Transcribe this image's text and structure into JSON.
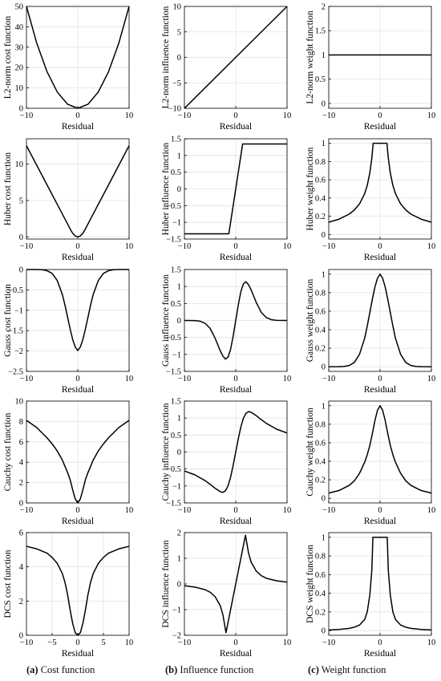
{
  "chart_data": [
    {
      "id": "l2-cost",
      "type": "line",
      "xlabel": "Residual",
      "ylabel": "L2-norm cost function",
      "xlim": [
        -10,
        10
      ],
      "ylim": [
        0,
        50
      ],
      "xticks": [
        -10,
        0,
        10
      ],
      "yticks": [
        0,
        10,
        20,
        30,
        40,
        50
      ],
      "grid": true,
      "series": [
        {
          "color": "#000000",
          "x": [
            -10,
            -8,
            -6,
            -4,
            -2,
            0,
            2,
            4,
            6,
            8,
            10
          ],
          "y": [
            50,
            32,
            18,
            8,
            2,
            0,
            2,
            8,
            18,
            32,
            50
          ]
        }
      ]
    },
    {
      "id": "l2-influence",
      "type": "line",
      "xlabel": "Residual",
      "ylabel": "L2-norm influence function",
      "xlim": [
        -10,
        10
      ],
      "ylim": [
        -10,
        10
      ],
      "xticks": [
        -10,
        0,
        10
      ],
      "yticks": [
        -10,
        -5,
        0,
        5,
        10
      ],
      "grid": true,
      "series": [
        {
          "color": "#000000",
          "x": [
            -10,
            0,
            10
          ],
          "y": [
            -10,
            0,
            10
          ]
        }
      ]
    },
    {
      "id": "l2-weight",
      "type": "line",
      "xlabel": "Residual",
      "ylabel": "L2-norm weight function",
      "xlim": [
        -10,
        10
      ],
      "ylim": [
        -0.1,
        2
      ],
      "xticks": [
        -10,
        0,
        10
      ],
      "yticks": [
        0,
        0.5,
        1,
        1.5,
        2
      ],
      "grid": true,
      "series": [
        {
          "color": "#000000",
          "x": [
            -10,
            10
          ],
          "y": [
            1,
            1
          ]
        }
      ]
    },
    {
      "id": "huber-cost",
      "type": "line",
      "xlabel": "Residual",
      "ylabel": "Huber cost function",
      "xlim": [
        -10,
        10
      ],
      "ylim": [
        -0.3,
        13.5
      ],
      "xticks": [
        -10,
        0,
        10
      ],
      "yticks": [
        0,
        5,
        10
      ],
      "grid": true,
      "series": [
        {
          "color": "#000000",
          "x": [
            -10,
            -8,
            -6,
            -4,
            -2,
            -1.345,
            -1,
            -0.5,
            0,
            0.5,
            1,
            1.345,
            2,
            4,
            6,
            8,
            10
          ],
          "y": [
            12.55,
            9.86,
            7.17,
            4.48,
            1.79,
            0.9,
            0.5,
            0.125,
            0,
            0.125,
            0.5,
            0.9,
            1.79,
            4.48,
            7.17,
            9.86,
            12.55
          ]
        }
      ]
    },
    {
      "id": "huber-influence",
      "type": "line",
      "xlabel": "Residual",
      "ylabel": "Huber influence function",
      "xlim": [
        -10,
        10
      ],
      "ylim": [
        -1.5,
        1.5
      ],
      "xticks": [
        -10,
        0,
        10
      ],
      "yticks": [
        -1.5,
        -1,
        -0.5,
        0,
        0.5,
        1,
        1.5
      ],
      "grid": true,
      "series": [
        {
          "color": "#000000",
          "x": [
            -10,
            -1.345,
            1.345,
            10
          ],
          "y": [
            -1.345,
            -1.345,
            1.345,
            1.345
          ]
        }
      ]
    },
    {
      "id": "huber-weight",
      "type": "line",
      "xlabel": "Residual",
      "ylabel": "Huber weight function",
      "xlim": [
        -10,
        10
      ],
      "ylim": [
        -0.05,
        1.05
      ],
      "xticks": [
        -10,
        0,
        10
      ],
      "yticks": [
        0,
        0.2,
        0.4,
        0.6,
        0.8,
        1
      ],
      "grid": true,
      "series": [
        {
          "color": "#000000",
          "x": [
            -10,
            -8,
            -6,
            -5,
            -4,
            -3,
            -2.5,
            -2,
            -1.6,
            -1.345,
            1.345,
            1.6,
            2,
            2.5,
            3,
            4,
            5,
            6,
            8,
            10
          ],
          "y": [
            0.135,
            0.168,
            0.224,
            0.269,
            0.336,
            0.448,
            0.538,
            0.673,
            0.841,
            1,
            1,
            0.841,
            0.673,
            0.538,
            0.448,
            0.336,
            0.269,
            0.224,
            0.168,
            0.135
          ]
        }
      ]
    },
    {
      "id": "gauss-cost",
      "type": "line",
      "xlabel": "Residual",
      "ylabel": "Gauss cost function",
      "xlim": [
        -10,
        10
      ],
      "ylim": [
        -2.5,
        0
      ],
      "xticks": [
        -10,
        0,
        10
      ],
      "yticks": [
        -2.5,
        -2,
        -1.5,
        -1,
        -0.5,
        0
      ],
      "grid": true,
      "series": [
        {
          "color": "#000000",
          "x": [
            -10,
            -8,
            -7,
            -6,
            -5,
            -4,
            -3,
            -2.5,
            -2,
            -1.5,
            -1,
            -0.5,
            0,
            0.5,
            1,
            1.5,
            2,
            2.5,
            3,
            4,
            5,
            6,
            7,
            8,
            10
          ],
          "y": [
            0,
            -0.001,
            -0.006,
            -0.028,
            -0.094,
            -0.27,
            -0.614,
            -0.873,
            -1.162,
            -1.452,
            -1.715,
            -1.902,
            -1.99,
            -1.902,
            -1.715,
            -1.452,
            -1.162,
            -0.873,
            -0.614,
            -0.27,
            -0.094,
            -0.028,
            -0.006,
            -0.001,
            0
          ]
        }
      ]
    },
    {
      "id": "gauss-influence",
      "type": "line",
      "xlabel": "Residual",
      "ylabel": "Gauss influence function",
      "xlim": [
        -10,
        10
      ],
      "ylim": [
        -1.5,
        1.5
      ],
      "xticks": [
        -10,
        0,
        10
      ],
      "yticks": [
        -1.5,
        -1,
        -0.5,
        0,
        0.5,
        1,
        1.5
      ],
      "grid": true,
      "series": [
        {
          "color": "#000000",
          "x": [
            -10,
            -8,
            -7,
            -6,
            -5,
            -4,
            -3,
            -2.5,
            -2,
            -1.5,
            -1,
            -0.5,
            0,
            0.5,
            1,
            1.5,
            2,
            2.5,
            3,
            4,
            5,
            6,
            7,
            8,
            10
          ],
          "y": [
            0,
            -0.004,
            -0.02,
            -0.08,
            -0.23,
            -0.53,
            -0.9,
            -1.05,
            -1.14,
            -1.08,
            -0.85,
            -0.46,
            0,
            0.46,
            0.85,
            1.08,
            1.14,
            1.05,
            0.9,
            0.53,
            0.23,
            0.08,
            0.02,
            0.004,
            0
          ]
        }
      ]
    },
    {
      "id": "gauss-weight",
      "type": "line",
      "xlabel": "Residual",
      "ylabel": "Gauss weight function",
      "xlim": [
        -10,
        10
      ],
      "ylim": [
        -0.05,
        1.05
      ],
      "xticks": [
        -10,
        0,
        10
      ],
      "yticks": [
        0,
        0.2,
        0.4,
        0.6,
        0.8,
        1
      ],
      "grid": true,
      "series": [
        {
          "color": "#000000",
          "x": [
            -10,
            -8,
            -7,
            -6,
            -5,
            -4,
            -3,
            -2.5,
            -2,
            -1.5,
            -1,
            -0.5,
            0,
            0.5,
            1,
            1.5,
            2,
            2.5,
            3,
            4,
            5,
            6,
            7,
            8,
            10
          ],
          "y": [
            0,
            0.001,
            0.003,
            0.014,
            0.047,
            0.135,
            0.308,
            0.439,
            0.584,
            0.73,
            0.861,
            0.956,
            1,
            0.956,
            0.861,
            0.73,
            0.584,
            0.439,
            0.308,
            0.135,
            0.047,
            0.014,
            0.003,
            0.001,
            0
          ]
        }
      ]
    },
    {
      "id": "cauchy-cost",
      "type": "line",
      "xlabel": "Residual",
      "ylabel": "Cauchy cost function",
      "xlim": [
        -10,
        10
      ],
      "ylim": [
        0,
        10
      ],
      "xticks": [
        -10,
        0,
        10
      ],
      "yticks": [
        0,
        2,
        4,
        6,
        8,
        10
      ],
      "grid": true,
      "series": [
        {
          "color": "#000000",
          "x": [
            -10,
            -8,
            -6,
            -5,
            -4,
            -3,
            -2,
            -1.5,
            -1,
            -0.5,
            0,
            0.5,
            1,
            1.5,
            2,
            3,
            4,
            5,
            6,
            8,
            10
          ],
          "y": [
            8.1,
            7.4,
            6.4,
            5.8,
            5.1,
            4.2,
            3.0,
            2.3,
            1.3,
            0.4,
            0,
            0.4,
            1.3,
            2.3,
            3.0,
            4.2,
            5.1,
            5.8,
            6.4,
            7.4,
            8.1
          ]
        }
      ]
    },
    {
      "id": "cauchy-influence",
      "type": "line",
      "xlabel": "Residual",
      "ylabel": "Cauchy influence function",
      "xlim": [
        -10,
        10
      ],
      "ylim": [
        -1.5,
        1.5
      ],
      "xticks": [
        -10,
        0,
        10
      ],
      "yticks": [
        -1.5,
        -1,
        -0.5,
        0,
        0.5,
        1,
        1.5
      ],
      "grid": true,
      "series": [
        {
          "color": "#000000",
          "x": [
            -10,
            -8,
            -6,
            -5,
            -4,
            -3,
            -2.5,
            -2,
            -1.5,
            -1,
            -0.5,
            0,
            0.5,
            1,
            1.5,
            2,
            2.5,
            3,
            4,
            5,
            6,
            8,
            10
          ],
          "y": [
            -0.56,
            -0.67,
            -0.84,
            -0.95,
            -1.07,
            -1.17,
            -1.19,
            -1.14,
            -1.0,
            -0.74,
            -0.39,
            0,
            0.39,
            0.74,
            1.0,
            1.14,
            1.19,
            1.17,
            1.07,
            0.95,
            0.84,
            0.67,
            0.56
          ]
        }
      ]
    },
    {
      "id": "cauchy-weight",
      "type": "line",
      "xlabel": "Residual",
      "ylabel": "Cauchy weight function",
      "xlim": [
        -10,
        10
      ],
      "ylim": [
        -0.05,
        1.05
      ],
      "xticks": [
        -10,
        0,
        10
      ],
      "yticks": [
        0,
        0.2,
        0.4,
        0.6,
        0.8,
        1
      ],
      "grid": true,
      "series": [
        {
          "color": "#000000",
          "x": [
            -10,
            -8,
            -6,
            -5,
            -4,
            -3,
            -2.5,
            -2,
            -1.5,
            -1,
            -0.5,
            0,
            0.5,
            1,
            1.5,
            2,
            2.5,
            3,
            4,
            5,
            6,
            8,
            10
          ],
          "y": [
            0.056,
            0.084,
            0.14,
            0.19,
            0.27,
            0.39,
            0.47,
            0.57,
            0.7,
            0.84,
            0.95,
            1,
            0.95,
            0.84,
            0.7,
            0.57,
            0.47,
            0.39,
            0.27,
            0.19,
            0.14,
            0.084,
            0.056
          ]
        }
      ]
    },
    {
      "id": "dcs-cost",
      "type": "line",
      "xlabel": "Residual",
      "ylabel": "DCS cost function",
      "xlim": [
        -10,
        10
      ],
      "ylim": [
        0,
        6
      ],
      "xticks": [
        -10,
        -5,
        0,
        5,
        10
      ],
      "yticks": [
        0,
        2,
        4,
        6
      ],
      "grid": true,
      "series": [
        {
          "color": "#000000",
          "x": [
            -10,
            -8,
            -6,
            -5,
            -4,
            -3,
            -2.5,
            -2,
            -1.5,
            -1,
            -0.5,
            0,
            0.5,
            1,
            1.5,
            2,
            2.5,
            3,
            4,
            5,
            6,
            8,
            10
          ],
          "y": [
            5.2,
            5.05,
            4.8,
            4.55,
            4.2,
            3.6,
            3.1,
            2.4,
            1.5,
            0.7,
            0.15,
            0,
            0.15,
            0.7,
            1.5,
            2.4,
            3.1,
            3.6,
            4.2,
            4.55,
            4.8,
            5.05,
            5.2
          ]
        }
      ]
    },
    {
      "id": "dcs-influence",
      "type": "line",
      "xlabel": "Residual",
      "ylabel": "DCS influence function",
      "xlim": [
        -10,
        10
      ],
      "ylim": [
        -2,
        2
      ],
      "xticks": [
        -10,
        0,
        10
      ],
      "yticks": [
        -2,
        -1,
        0,
        1,
        2
      ],
      "grid": true,
      "series": [
        {
          "color": "#000000",
          "x": [
            -10,
            -8,
            -6,
            -5,
            -4,
            -3,
            -2.5,
            -1.9,
            -1,
            0,
            1,
            1.9,
            2.5,
            3,
            4,
            5,
            6,
            8,
            10
          ],
          "y": [
            -0.07,
            -0.12,
            -0.22,
            -0.32,
            -0.5,
            -0.85,
            -1.2,
            -1.9,
            -1.0,
            0,
            1.0,
            1.9,
            1.2,
            0.85,
            0.5,
            0.32,
            0.22,
            0.12,
            0.07
          ]
        }
      ]
    },
    {
      "id": "dcs-weight",
      "type": "line",
      "xlabel": "Residual",
      "ylabel": "DCS weight function",
      "xlim": [
        -10,
        10
      ],
      "ylim": [
        -0.05,
        1.05
      ],
      "xticks": [
        -10,
        0,
        10
      ],
      "yticks": [
        0,
        0.2,
        0.4,
        0.6,
        0.8,
        1
      ],
      "grid": true,
      "series": [
        {
          "color": "#000000",
          "x": [
            -10,
            -8,
            -6,
            -5,
            -4,
            -3,
            -2.5,
            -2,
            -1.6,
            -1.4,
            1.4,
            1.6,
            2,
            2.5,
            3,
            4,
            5,
            6,
            8,
            10
          ],
          "y": [
            0.007,
            0.012,
            0.024,
            0.037,
            0.06,
            0.12,
            0.2,
            0.38,
            0.65,
            1,
            1,
            0.65,
            0.38,
            0.2,
            0.12,
            0.06,
            0.037,
            0.024,
            0.012,
            0.007
          ]
        }
      ]
    }
  ],
  "captions": [
    {
      "letter": "(a)",
      "text": "Cost function"
    },
    {
      "letter": "(b)",
      "text": "Influence function"
    },
    {
      "letter": "(c)",
      "text": "Weight function"
    }
  ]
}
